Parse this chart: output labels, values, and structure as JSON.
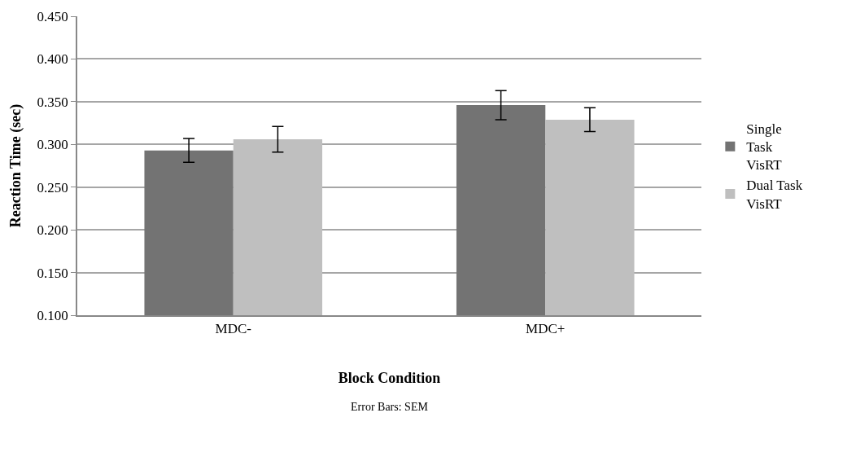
{
  "chart_data": {
    "type": "bar",
    "categories": [
      "MDC-",
      "MDC+"
    ],
    "series": [
      {
        "name": "Single Task VisRT",
        "color": "#737373",
        "values": [
          0.293,
          0.346
        ],
        "errors": [
          0.014,
          0.017
        ]
      },
      {
        "name": "Dual Task VisRT",
        "color": "#bfbfbf",
        "values": [
          0.306,
          0.329
        ],
        "errors": [
          0.015,
          0.014
        ]
      }
    ],
    "xlabel": "Block Condition",
    "ylabel": "Reaction Time (sec)",
    "annotations": [
      "Error Bars: SEM"
    ],
    "ylim": [
      0.1,
      0.45
    ],
    "yticks": [
      {
        "value": 0.1,
        "label": "0.100"
      },
      {
        "value": 0.15,
        "label": "0.150"
      },
      {
        "value": 0.2,
        "label": "0.200"
      },
      {
        "value": 0.25,
        "label": "0.250"
      },
      {
        "value": 0.3,
        "label": "0.300"
      },
      {
        "value": 0.35,
        "label": "0.350"
      },
      {
        "value": 0.4,
        "label": "0.400"
      },
      {
        "value": 0.45,
        "label": "0.450"
      }
    ],
    "grid": "y",
    "legend": "right"
  }
}
